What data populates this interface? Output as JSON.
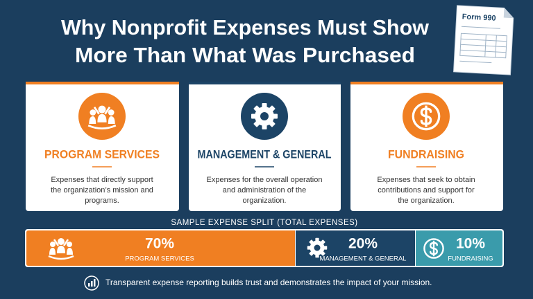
{
  "header": {
    "title_lines": [
      "Why Nonprofit Expenses Must Show",
      "More Than What Was Purchased"
    ],
    "form_label": "Form 990"
  },
  "cards": [
    {
      "heading": "PROGRAM SERVICES",
      "description_lines": [
        "Expenses that directly support",
        "the organization’s mission and",
        "programs."
      ]
    },
    {
      "heading": "MANAGEMENT & GENERAL",
      "description_lines": [
        "Expenses for the overall operation",
        "and administration of the",
        "organization."
      ]
    },
    {
      "heading": "FUNDRAISING",
      "description_lines": [
        "Expenses that seek to obtain",
        "contributions and support for",
        "the organization."
      ]
    }
  ],
  "split": {
    "title": "SAMPLE EXPENSE SPLIT (TOTAL EXPENSES)",
    "segments": [
      {
        "percent": "70%",
        "label": "PROGRAM SERVICES"
      },
      {
        "percent": "20%",
        "label": "MANAGEMENT & GENERAL"
      },
      {
        "percent": "10%",
        "label": "FUNDRAISING"
      }
    ]
  },
  "footer": {
    "text": "Transparent expense reporting builds trust and demonstrates the impact of your mission."
  }
}
